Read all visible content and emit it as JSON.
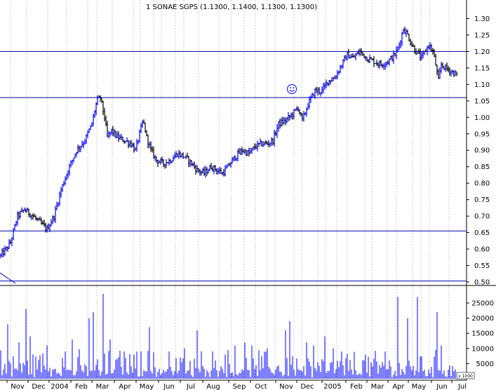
{
  "chart_data": {
    "type": "bar",
    "title": "1 SONAE SGPS (1.1300, 1.1400, 1.1300, 1.1300)",
    "price_panel": {
      "ylim": [
        0.47,
        1.33
      ],
      "yticks": [
        "1.30",
        "1.25",
        "1.20",
        "1.15",
        "1.10",
        "1.05",
        "1.00",
        "0.95",
        "0.90",
        "0.85",
        "0.80",
        "0.75",
        "0.70",
        "0.65",
        "0.60",
        "0.55",
        "0.50"
      ],
      "horizontal_lines": [
        1.2,
        1.06,
        0.655,
        0.503
      ],
      "grid": "vertical-dotted",
      "up_color": "#0000ff",
      "down_color": "#000000",
      "keypoints": [
        [
          0,
          0.58
        ],
        [
          8,
          0.6
        ],
        [
          14,
          0.62
        ],
        [
          24,
          0.7
        ],
        [
          34,
          0.72
        ],
        [
          46,
          0.7
        ],
        [
          56,
          0.68
        ],
        [
          66,
          0.66
        ],
        [
          76,
          0.7
        ],
        [
          86,
          0.78
        ],
        [
          96,
          0.84
        ],
        [
          108,
          0.9
        ],
        [
          120,
          0.93
        ],
        [
          130,
          0.98
        ],
        [
          137,
          1.05
        ],
        [
          142,
          1.06
        ],
        [
          148,
          1.0
        ],
        [
          152,
          0.94
        ],
        [
          158,
          0.96
        ],
        [
          166,
          0.94
        ],
        [
          176,
          0.93
        ],
        [
          186,
          0.92
        ],
        [
          192,
          0.9
        ],
        [
          198,
          0.95
        ],
        [
          203,
          0.99
        ],
        [
          208,
          0.94
        ],
        [
          214,
          0.9
        ],
        [
          222,
          0.87
        ],
        [
          232,
          0.86
        ],
        [
          242,
          0.87
        ],
        [
          252,
          0.89
        ],
        [
          262,
          0.88
        ],
        [
          272,
          0.86
        ],
        [
          280,
          0.84
        ],
        [
          290,
          0.83
        ],
        [
          300,
          0.85
        ],
        [
          308,
          0.84
        ],
        [
          316,
          0.83
        ],
        [
          324,
          0.85
        ],
        [
          334,
          0.88
        ],
        [
          344,
          0.9
        ],
        [
          354,
          0.89
        ],
        [
          362,
          0.91
        ],
        [
          372,
          0.92
        ],
        [
          380,
          0.92
        ],
        [
          388,
          0.93
        ],
        [
          396,
          0.98
        ],
        [
          406,
          0.99
        ],
        [
          416,
          1.01
        ],
        [
          424,
          1.03
        ],
        [
          430,
          0.99
        ],
        [
          438,
          1.04
        ],
        [
          448,
          1.08
        ],
        [
          458,
          1.08
        ],
        [
          466,
          1.11
        ],
        [
          476,
          1.12
        ],
        [
          486,
          1.16
        ],
        [
          494,
          1.19
        ],
        [
          502,
          1.18
        ],
        [
          512,
          1.2
        ],
        [
          522,
          1.18
        ],
        [
          532,
          1.17
        ],
        [
          542,
          1.16
        ],
        [
          552,
          1.17
        ],
        [
          562,
          1.19
        ],
        [
          568,
          1.22
        ],
        [
          574,
          1.27
        ],
        [
          580,
          1.25
        ],
        [
          586,
          1.22
        ],
        [
          592,
          1.2
        ],
        [
          600,
          1.18
        ],
        [
          610,
          1.22
        ],
        [
          616,
          1.2
        ],
        [
          620,
          1.16
        ],
        [
          624,
          1.11
        ],
        [
          628,
          1.16
        ],
        [
          634,
          1.15
        ],
        [
          642,
          1.14
        ],
        [
          650,
          1.13
        ]
      ]
    },
    "volume_panel": {
      "ylim": [
        0,
        28000
      ],
      "yticks": [
        "25000",
        "20000",
        "15000",
        "10000",
        "5000"
      ],
      "label": "x 1000",
      "bar_color": "#0000ff",
      "peaks": [
        [
          10,
          18000
        ],
        [
          26,
          12000
        ],
        [
          36,
          23000
        ],
        [
          42,
          14000
        ],
        [
          66,
          11000
        ],
        [
          92,
          9000
        ],
        [
          102,
          13000
        ],
        [
          126,
          20000
        ],
        [
          132,
          22000
        ],
        [
          146,
          28000
        ],
        [
          156,
          13000
        ],
        [
          176,
          9000
        ],
        [
          190,
          8000
        ],
        [
          200,
          9000
        ],
        [
          212,
          17000
        ],
        [
          240,
          9000
        ],
        [
          262,
          10000
        ],
        [
          280,
          16000
        ],
        [
          302,
          9000
        ],
        [
          320,
          8000
        ],
        [
          334,
          11000
        ],
        [
          348,
          12000
        ],
        [
          358,
          11000
        ],
        [
          380,
          10000
        ],
        [
          406,
          16000
        ],
        [
          412,
          19000
        ],
        [
          436,
          12000
        ],
        [
          446,
          11000
        ],
        [
          462,
          14000
        ],
        [
          474,
          10000
        ],
        [
          486,
          9000
        ],
        [
          520,
          8000
        ],
        [
          548,
          9000
        ],
        [
          566,
          27000
        ],
        [
          580,
          20000
        ],
        [
          594,
          27000
        ],
        [
          622,
          22000
        ],
        [
          628,
          11000
        ]
      ]
    },
    "x_axis": {
      "labels": [
        "Nov",
        "Dec",
        "2004",
        "Feb",
        "Mar",
        "Apr",
        "May",
        "Jun",
        "Jul",
        "Aug",
        "Sep",
        "Oct",
        "Nov",
        "Dec",
        "2005",
        "Feb",
        "Mar",
        "Apr",
        "May",
        "Jun",
        "Jul"
      ]
    },
    "annotation": "smiley"
  }
}
